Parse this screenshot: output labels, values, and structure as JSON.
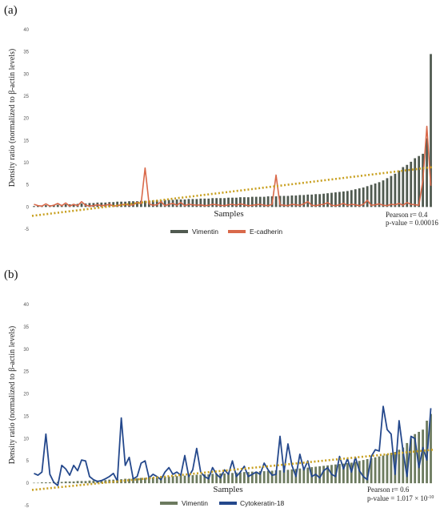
{
  "chart_data": [
    {
      "type": "bar",
      "panel_label": "(a)",
      "title": "",
      "xlabel": "Samples",
      "ylabel": "Density ratio (normalized to β-actin levels)",
      "ylim": [
        -5,
        40
      ],
      "yticks": [
        -5,
        0,
        5,
        10,
        15,
        20,
        25,
        30,
        35,
        40
      ],
      "grid": false,
      "legend_position": "bottom-center",
      "annotation": [
        "Pearson r= 0.4",
        "p-value = 0.00016"
      ],
      "trendline": {
        "style": "dotted",
        "color": "#C8A020",
        "y_start": -2,
        "y_end": 9
      },
      "series": [
        {
          "name": "Vimentin",
          "render": "bar",
          "color": "#505A50",
          "values": [
            0.2,
            0.3,
            0.3,
            0.4,
            0.4,
            0.5,
            0.5,
            0.5,
            0.6,
            0.6,
            0.7,
            0.7,
            0.8,
            0.8,
            0.9,
            0.9,
            1.0,
            1.0,
            1.0,
            1.1,
            1.1,
            1.2,
            1.2,
            1.2,
            1.3,
            1.3,
            1.3,
            1.4,
            1.4,
            1.4,
            1.5,
            1.5,
            1.5,
            1.6,
            1.6,
            1.6,
            1.7,
            1.7,
            1.7,
            1.8,
            1.8,
            1.8,
            1.9,
            1.9,
            1.9,
            2.0,
            2.0,
            2.0,
            2.0,
            2.1,
            2.1,
            2.1,
            2.2,
            2.2,
            2.2,
            2.3,
            2.3,
            2.3,
            2.3,
            2.4,
            2.4,
            2.4,
            2.5,
            2.5,
            2.5,
            2.6,
            2.6,
            2.7,
            2.7,
            2.8,
            2.8,
            2.9,
            2.9,
            3.0,
            3.1,
            3.2,
            3.3,
            3.4,
            3.5,
            3.6,
            3.8,
            4.0,
            4.2,
            4.4,
            4.7,
            5.0,
            5.3,
            5.6,
            6.0,
            6.5,
            7.0,
            7.5,
            8.2,
            9.0,
            9.5,
            10.2,
            11.0,
            11.5,
            12.0,
            15.5,
            34.5
          ]
        },
        {
          "name": "E-cadherin",
          "render": "line",
          "color": "#D9694A",
          "values": [
            0.6,
            0.3,
            0.2,
            0.7,
            0.2,
            0.4,
            0.8,
            0.3,
            0.9,
            0.2,
            0.6,
            0.3,
            1.2,
            0.4,
            0.2,
            0.3,
            0.5,
            0.3,
            0.4,
            0.6,
            0.2,
            0.3,
            0.5,
            0.6,
            0.4,
            0.5,
            1.0,
            0.8,
            8.8,
            0.7,
            0.4,
            0.5,
            1.2,
            0.3,
            0.6,
            0.8,
            0.4,
            1.0,
            0.3,
            0.6,
            0.5,
            0.4,
            0.5,
            0.3,
            0.4,
            0.6,
            0.5,
            0.4,
            0.3,
            0.5,
            0.6,
            0.4,
            0.7,
            0.5,
            0.3,
            0.4,
            0.5,
            0.6,
            0.4,
            0.3,
            0.6,
            7.2,
            0.5,
            0.4,
            0.3,
            0.6,
            0.5,
            0.4,
            0.7,
            1.2,
            0.4,
            0.3,
            0.5,
            0.6,
            1.0,
            0.4,
            0.3,
            0.5,
            0.8,
            0.4,
            0.6,
            0.5,
            0.3,
            0.6,
            1.5,
            0.4,
            0.5,
            0.7,
            0.4,
            0.3,
            0.6,
            0.5,
            0.8,
            0.4,
            1.0,
            0.6,
            0.5,
            0.4,
            6.0,
            18.2,
            4.8
          ]
        }
      ]
    },
    {
      "type": "bar",
      "panel_label": "(b)",
      "title": "",
      "xlabel": "Samples",
      "ylabel": "Density ratio (normalized to β-actin levels)",
      "ylim": [
        -5,
        40
      ],
      "yticks": [
        -5,
        0,
        5,
        10,
        15,
        20,
        25,
        30,
        35,
        40
      ],
      "grid": false,
      "legend_position": "bottom-center",
      "annotation": [
        "Pearson r= 0.6",
        "p-value = 1.017 × 10",
        "-10"
      ],
      "trendline": {
        "style": "dotted",
        "color": "#C8A020",
        "y_start": -1.5,
        "y_end": 7.5
      },
      "series": [
        {
          "name": "Vimentin",
          "render": "bar",
          "color": "#6C7A5E",
          "values": [
            0.1,
            0.1,
            0.2,
            0.2,
            0.2,
            0.3,
            0.3,
            0.3,
            0.4,
            0.4,
            0.4,
            0.5,
            0.5,
            0.5,
            0.6,
            0.6,
            0.6,
            0.7,
            0.7,
            0.8,
            0.8,
            0.9,
            0.9,
            1.0,
            1.0,
            1.1,
            1.1,
            1.2,
            1.2,
            1.3,
            1.3,
            1.4,
            1.4,
            1.5,
            1.5,
            1.6,
            1.6,
            1.7,
            1.7,
            1.8,
            1.8,
            1.9,
            1.9,
            2.0,
            2.0,
            2.1,
            2.1,
            2.2,
            2.2,
            2.3,
            2.3,
            2.4,
            2.4,
            2.5,
            2.5,
            2.6,
            2.6,
            2.7,
            2.7,
            2.8,
            2.8,
            2.9,
            2.9,
            3.0,
            3.0,
            3.1,
            3.2,
            3.3,
            3.4,
            3.5,
            3.6,
            3.7,
            3.8,
            3.9,
            4.0,
            4.1,
            4.2,
            4.3,
            4.4,
            4.5,
            4.6,
            4.8,
            5.0,
            5.2,
            5.4,
            5.6,
            5.8,
            6.0,
            6.2,
            6.5,
            6.8,
            7.0,
            7.5,
            8.0,
            9.0,
            10.0,
            11.0,
            11.5,
            12.0,
            14.0,
            15.5
          ]
        },
        {
          "name": "Cytokeratin-18",
          "render": "line",
          "color": "#24488C",
          "values": [
            2.2,
            1.8,
            2.5,
            11.0,
            2.0,
            0.2,
            -0.5,
            4.0,
            3.2,
            1.8,
            4.0,
            2.8,
            5.2,
            5.0,
            1.5,
            0.8,
            0.4,
            0.6,
            1.0,
            1.5,
            2.2,
            0.5,
            14.6,
            4.0,
            5.8,
            1.0,
            1.5,
            4.5,
            5.0,
            1.2,
            2.0,
            1.5,
            0.8,
            2.5,
            3.5,
            2.0,
            2.5,
            1.8,
            6.2,
            1.5,
            3.0,
            7.8,
            2.5,
            1.5,
            1.0,
            3.5,
            2.0,
            1.2,
            3.0,
            2.0,
            5.0,
            1.5,
            2.5,
            3.8,
            1.5,
            2.0,
            2.5,
            2.0,
            4.5,
            3.0,
            1.8,
            2.0,
            10.5,
            2.5,
            8.8,
            4.0,
            1.5,
            6.5,
            3.0,
            5.0,
            1.5,
            2.0,
            1.2,
            2.8,
            3.5,
            2.0,
            1.5,
            6.0,
            3.2,
            5.5,
            2.5,
            5.8,
            2.8,
            1.5,
            0.8,
            6.0,
            7.5,
            7.2,
            17.2,
            12.0,
            11.0,
            2.0,
            14.0,
            7.2,
            1.5,
            10.5,
            10.0,
            3.5,
            8.0,
            5.2,
            16.8
          ]
        }
      ]
    }
  ]
}
